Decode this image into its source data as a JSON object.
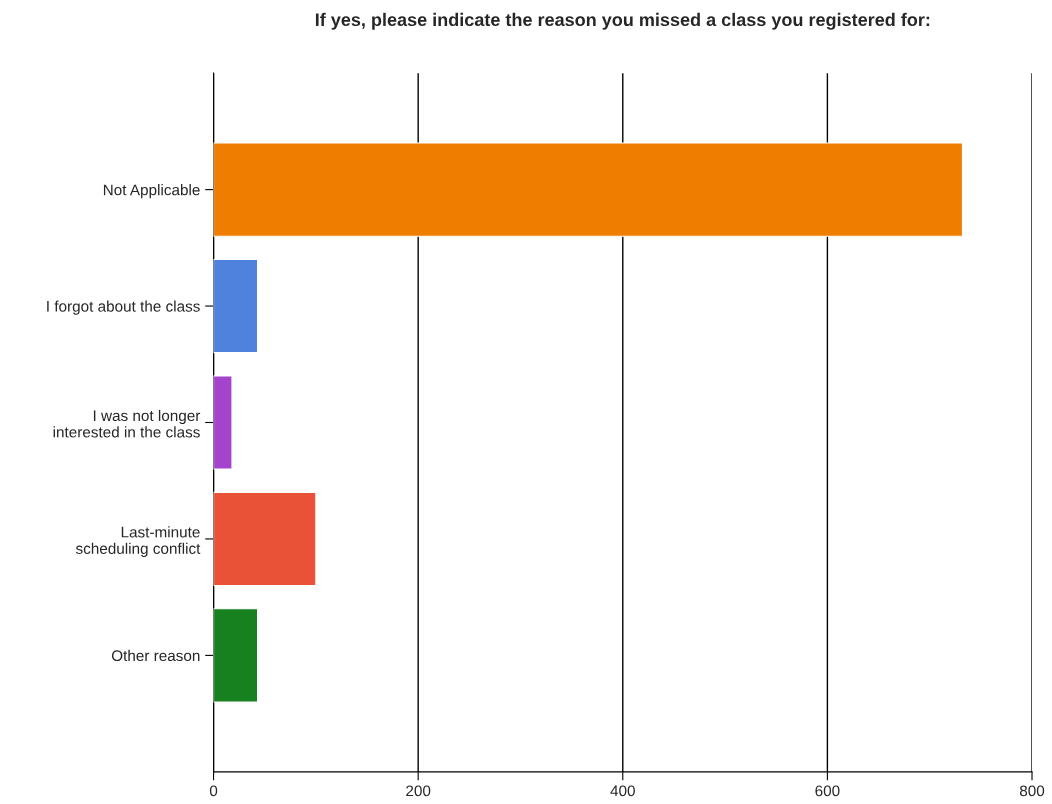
{
  "chart_data": {
    "type": "bar",
    "orientation": "horizontal",
    "title": "If yes, please indicate the reason you missed a class you registered for:",
    "categories": [
      "Not Applicable",
      "I forgot about the class",
      "I was not longer\ninterested in the class",
      "Last-minute\nscheduling conflict",
      "Other reason"
    ],
    "values": [
      732,
      43,
      18,
      100,
      43
    ],
    "colors": [
      "#ee7d00",
      "#4f82dc",
      "#a444cc",
      "#ea5238",
      "#17811f"
    ],
    "xlim": [
      0,
      800
    ],
    "xticks": [
      0,
      200,
      400,
      600,
      800
    ],
    "grid": "x",
    "legend": false
  }
}
